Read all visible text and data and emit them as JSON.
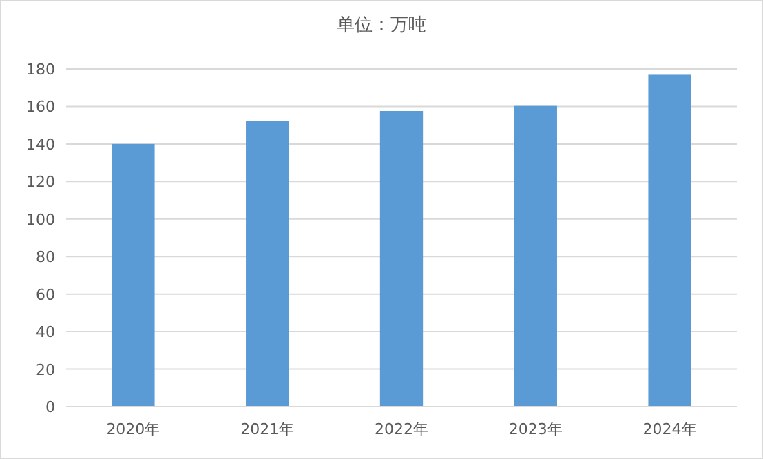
{
  "chart_data": {
    "type": "bar",
    "title": "单位：万吨",
    "categories": [
      "2020年",
      "2021年",
      "2022年",
      "2023年",
      "2024年"
    ],
    "values": [
      140,
      152.4,
      157.6,
      160.3,
      176.9
    ],
    "color": "#5b9bd5",
    "ylim": [
      0,
      180
    ],
    "yticks": [
      0,
      20,
      40,
      60,
      80,
      100,
      120,
      140,
      160,
      180
    ],
    "grid": "y"
  }
}
